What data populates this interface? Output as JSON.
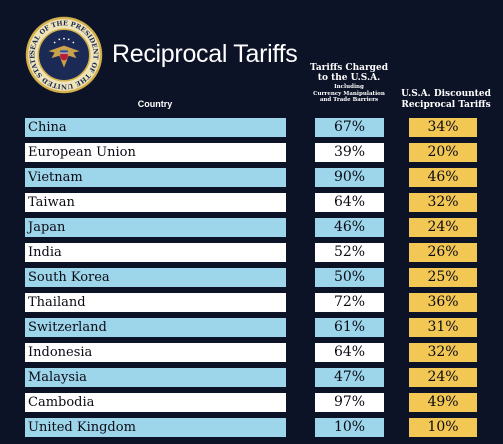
{
  "header": {
    "title": "Reciprocal Tariffs",
    "seal_text": "SEAL OF THE PRESIDENT OF THE UNITED STATES"
  },
  "columns": {
    "country": "Country",
    "charged_line1": "Tariffs Charged",
    "charged_line2": "to the U.S.A.",
    "charged_sub1": "Including",
    "charged_sub2": "Currency Manipulation",
    "charged_sub3": "and Trade Barriers",
    "discounted_line1": "U.S.A. Discounted",
    "discounted_line2": "Reciprocal Tariffs"
  },
  "colors": {
    "background": "#0d1326",
    "row_blue": "#9dd5ea",
    "row_white": "#ffffff",
    "discounted": "#f3c754"
  },
  "rows": [
    {
      "country": "China",
      "charged": "67%",
      "discounted": "34%"
    },
    {
      "country": "European Union",
      "charged": "39%",
      "discounted": "20%"
    },
    {
      "country": "Vietnam",
      "charged": "90%",
      "discounted": "46%"
    },
    {
      "country": "Taiwan",
      "charged": "64%",
      "discounted": "32%"
    },
    {
      "country": "Japan",
      "charged": "46%",
      "discounted": "24%"
    },
    {
      "country": "India",
      "charged": "52%",
      "discounted": "26%"
    },
    {
      "country": "South Korea",
      "charged": "50%",
      "discounted": "25%"
    },
    {
      "country": "Thailand",
      "charged": "72%",
      "discounted": "36%"
    },
    {
      "country": "Switzerland",
      "charged": "61%",
      "discounted": "31%"
    },
    {
      "country": "Indonesia",
      "charged": "64%",
      "discounted": "32%"
    },
    {
      "country": "Malaysia",
      "charged": "47%",
      "discounted": "24%"
    },
    {
      "country": "Cambodia",
      "charged": "97%",
      "discounted": "49%"
    },
    {
      "country": "United Kingdom",
      "charged": "10%",
      "discounted": "10%"
    }
  ]
}
